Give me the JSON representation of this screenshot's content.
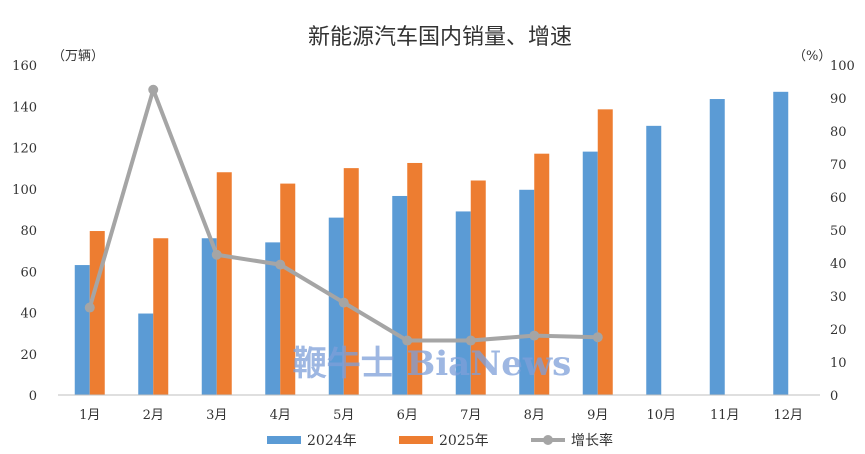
{
  "chart_data": {
    "type": "bar",
    "title": "新能源汽车国内销量、增速",
    "y_left_unit": "（万辆）",
    "y_right_unit": "（%）",
    "categories": [
      "1月",
      "2月",
      "3月",
      "4月",
      "5月",
      "6月",
      "7月",
      "8月",
      "9月",
      "10月",
      "11月",
      "12月"
    ],
    "series": [
      {
        "name": "2024年",
        "kind": "bar",
        "color": "#5b9bd5",
        "values": [
          63,
          39.5,
          76,
          74,
          86,
          96.5,
          89,
          99.5,
          118,
          130.5,
          143.5,
          147
        ]
      },
      {
        "name": "2025年",
        "kind": "bar",
        "color": "#ed7d31",
        "values": [
          79.5,
          76,
          108,
          102.5,
          110,
          112.5,
          104,
          117,
          138.5,
          null,
          null,
          null
        ]
      },
      {
        "name": "增长率",
        "kind": "line",
        "color": "#a5a5a5",
        "axis": "right",
        "values": [
          26.5,
          92.5,
          42.5,
          39.5,
          28,
          16.5,
          16.5,
          18,
          17.5,
          null,
          null,
          null
        ]
      }
    ],
    "ylim_left": [
      0,
      160
    ],
    "yticks_left": [
      0,
      20,
      40,
      60,
      80,
      100,
      120,
      140,
      160
    ],
    "ylim_right": [
      0,
      100
    ],
    "yticks_right": [
      0,
      10,
      20,
      30,
      40,
      50,
      60,
      70,
      80,
      90,
      100
    ],
    "grid": false,
    "legend": "bottom"
  },
  "watermark": "鞭牛士 BiaNews"
}
